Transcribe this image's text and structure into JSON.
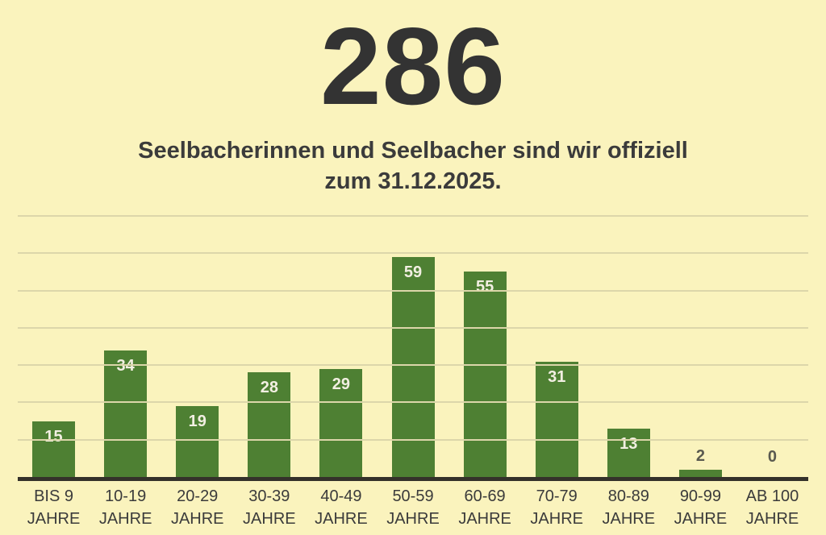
{
  "page": {
    "background_color": "#FAF3BD"
  },
  "header": {
    "headline": "286",
    "subtitle_line1": "Seelbacherinnen und Seelbacher sind wir offiziell",
    "subtitle_line2": "zum 31.12.2025."
  },
  "chart_data": {
    "type": "bar",
    "title": "286",
    "subtitle": "Seelbacherinnen und Seelbacher sind wir offiziell zum 31.12.2025.",
    "categories": [
      "BIS 9 JAHRE",
      "10-19 JAHRE",
      "20-29 JAHRE",
      "30-39 JAHRE",
      "40-49 JAHRE",
      "50-59 JAHRE",
      "60-69 JAHRE",
      "70-79 JAHRE",
      "80-89 JAHRE",
      "90-99 JAHRE",
      "AB 100 JAHRE"
    ],
    "values": [
      15,
      34,
      19,
      28,
      29,
      59,
      55,
      31,
      13,
      2,
      0
    ],
    "xlabel": "",
    "ylabel": "",
    "ylim": [
      0,
      70
    ],
    "grid_step": 10,
    "grid": true,
    "legend": false,
    "bar_color": "#4E8033",
    "value_label_inside_color": "#F2EFE2",
    "value_label_outside_color": "#5A5A50",
    "gridline_color": "#DCD6AA",
    "axis_line_color": "#34312A",
    "tick_label_color": "#3B3B3B"
  }
}
